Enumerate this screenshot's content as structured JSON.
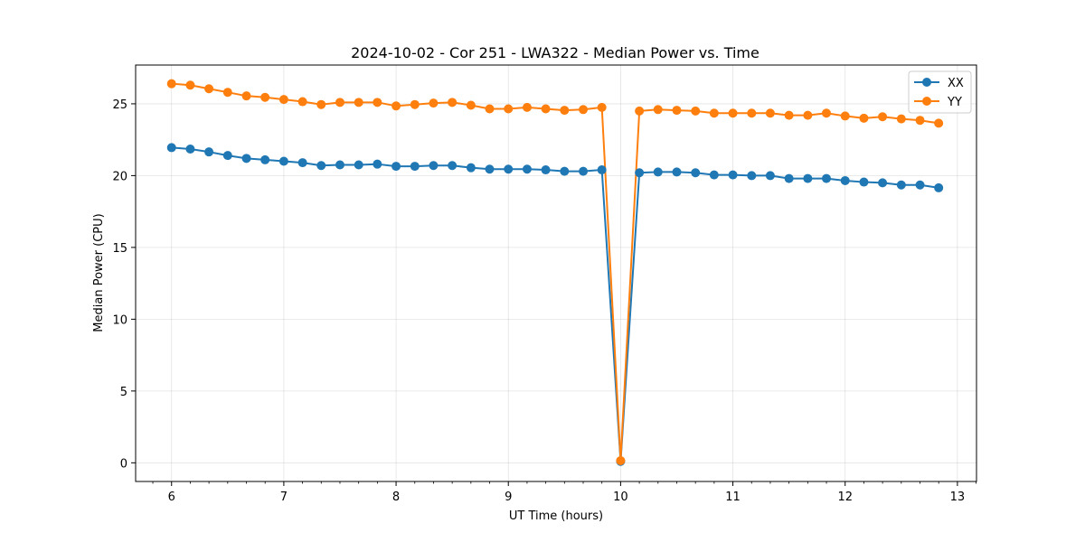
{
  "chart_data": {
    "type": "line",
    "title": "2024-10-02 - Cor 251 - LWA322 - Median Power vs. Time",
    "xlabel": "UT Time (hours)",
    "ylabel": "Median Power (CPU)",
    "xlim": [
      5.68,
      13.17
    ],
    "ylim": [
      -1.3,
      27.7
    ],
    "xticks": [
      6,
      7,
      8,
      9,
      10,
      11,
      12,
      13
    ],
    "yticks": [
      0,
      5,
      10,
      15,
      20,
      25
    ],
    "grid": true,
    "legend_position": "top-right",
    "x": [
      6.0,
      6.167,
      6.333,
      6.5,
      6.667,
      6.833,
      7.0,
      7.167,
      7.333,
      7.5,
      7.667,
      7.833,
      8.0,
      8.167,
      8.333,
      8.5,
      8.667,
      8.833,
      9.0,
      9.167,
      9.333,
      9.5,
      9.667,
      9.833,
      10.0,
      10.167,
      10.333,
      10.5,
      10.667,
      10.833,
      11.0,
      11.167,
      11.333,
      11.5,
      11.667,
      11.833,
      12.0,
      12.167,
      12.333,
      12.5,
      12.667,
      12.833
    ],
    "series": [
      {
        "name": "XX",
        "color": "#1f77b4",
        "values": [
          21.95,
          21.85,
          21.65,
          21.4,
          21.2,
          21.1,
          21.0,
          20.9,
          20.7,
          20.75,
          20.75,
          20.8,
          20.65,
          20.65,
          20.7,
          20.7,
          20.55,
          20.45,
          20.45,
          20.45,
          20.4,
          20.3,
          20.3,
          20.4,
          0.1,
          20.2,
          20.25,
          20.25,
          20.2,
          20.05,
          20.05,
          20.0,
          20.0,
          19.8,
          19.8,
          19.8,
          19.65,
          19.55,
          19.5,
          19.35,
          19.35,
          19.15
        ]
      },
      {
        "name": "YY",
        "color": "#ff7f0e",
        "values": [
          26.4,
          26.3,
          26.05,
          25.8,
          25.55,
          25.45,
          25.3,
          25.15,
          24.95,
          25.1,
          25.1,
          25.1,
          24.85,
          24.95,
          25.05,
          25.1,
          24.9,
          24.65,
          24.65,
          24.75,
          24.65,
          24.55,
          24.6,
          24.75,
          0.15,
          24.5,
          24.6,
          24.55,
          24.5,
          24.35,
          24.35,
          24.35,
          24.35,
          24.2,
          24.2,
          24.35,
          24.15,
          24.0,
          24.1,
          23.95,
          23.85,
          23.65
        ]
      }
    ]
  }
}
